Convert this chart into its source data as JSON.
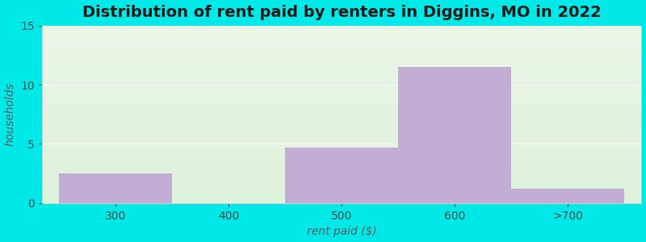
{
  "title": "Distribution of rent paid by renters in Diggins, MO in 2022",
  "xlabel": "rent paid ($)",
  "ylabel": "households",
  "bar_centers": [
    0.5,
    1.5,
    2.5,
    3.5,
    4.5
  ],
  "bar_labels": [
    "300",
    "400",
    "500",
    "600",
    ">700"
  ],
  "bar_heights": [
    2.5,
    0,
    4.7,
    11.5,
    1.2
  ],
  "bar_color": "#c2aed4",
  "bar_edge_color": "#c2aed4",
  "ylim": [
    0,
    15
  ],
  "yticks": [
    0,
    5,
    10,
    15
  ],
  "xlim": [
    -0.15,
    5.15
  ],
  "background_color": "#00e8e8",
  "plot_bg_color": "#e8f5e0",
  "title_fontsize": 14,
  "axis_label_fontsize": 10,
  "tick_fontsize": 10,
  "bar_width": 1.0
}
